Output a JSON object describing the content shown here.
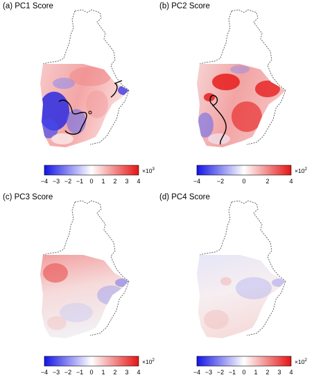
{
  "panels": [
    {
      "id": "a",
      "title": "(a) PC1 Score",
      "colorbar": {
        "ticks": [
          "−4",
          "−3",
          "−2",
          "−1",
          "0",
          "1",
          "2",
          "3",
          "4"
        ],
        "multiplier": "×10",
        "exponent": "3",
        "min": -4,
        "max": 4
      },
      "has_contour": true
    },
    {
      "id": "b",
      "title": "(b) PC2 Score",
      "colorbar": {
        "ticks": [
          "−4",
          "",
          "−2",
          "",
          "0",
          "",
          "2",
          "",
          "4"
        ],
        "multiplier": "×10",
        "exponent": "2",
        "min": -4,
        "max": 4
      },
      "has_contour": true
    },
    {
      "id": "c",
      "title": "(c) PC3 Score",
      "colorbar": {
        "ticks": [
          "−4",
          "−3",
          "−2",
          "−1",
          "0",
          "1",
          "2",
          "3",
          "4"
        ],
        "multiplier": "×10",
        "exponent": "2",
        "min": -4,
        "max": 4
      },
      "has_contour": false
    },
    {
      "id": "d",
      "title": "(d) PC4 Score",
      "colorbar": {
        "ticks": [
          "−4",
          "−3",
          "−2",
          "−1",
          "0",
          "1",
          "2",
          "3",
          "4"
        ],
        "multiplier": "×10",
        "exponent": "2",
        "min": -4,
        "max": 4
      },
      "has_contour": false
    }
  ],
  "colors": {
    "negative": "#1414e6",
    "neutral": "#ffffff",
    "positive": "#e61414",
    "boundary": "#555555",
    "contour": "#000000"
  }
}
